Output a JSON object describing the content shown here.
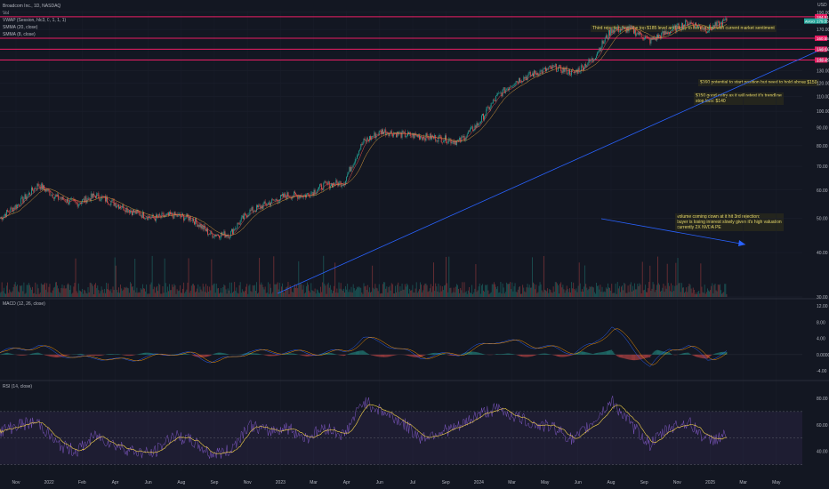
{
  "header": {
    "symbol_line": "Broadcom Inc., 1D, NASDAQ",
    "volume_label": "Vol",
    "vwap_label": "VWAP (Session, hlc3, 0, 1, 1, 1)",
    "sma_label": "SMMA (20, close)",
    "ema_label": "SMMA (8, close)",
    "currency": "USD"
  },
  "panes": {
    "macd_label": "MACD (12, 26, close)",
    "rsi_label": "RSI (14, close)"
  },
  "annotations": {
    "top_note": "Third rejection from the top $185 level and likely to trend lower with current market sentiment",
    "note_160": "$160 potential to start position but need to hold above $150",
    "note_150": "$150 good entry as it will retest it's trendline\nstop loss: $140",
    "note_volume": "volume coming down at it hit 3rd rejection;\nbuyer is losing interest slowly given it's high valuation\ncurrently 2X NVDA PE"
  },
  "colors": {
    "background": "#131722",
    "up": "#26a69a",
    "down": "#ef5350",
    "level_line": "#e91e63",
    "trendline": "#2962ff",
    "rsi": "#7e57c2",
    "rsi_ma": "#f7d44a"
  },
  "chart_data": [
    {
      "type": "line",
      "title": "Broadcom Inc., 1D, NASDAQ",
      "ylabel": "USD",
      "y_ticks": [
        "190.00",
        "170.00",
        "150.00",
        "140.00",
        "130.00",
        "120.00",
        "110.00",
        "100.00",
        "90.00",
        "80.00",
        "70.00",
        "60.00",
        "50.00",
        "40.00",
        "30.00"
      ],
      "x_ticks": [
        "Nov",
        "2022",
        "Feb",
        "Apr",
        "Jun",
        "Aug",
        "Sep",
        "Nov",
        "2023",
        "Mar",
        "Apr",
        "Jun",
        "Jul",
        "Sep",
        "2024",
        "Mar",
        "May",
        "Jun",
        "Aug",
        "Sep",
        "Nov",
        "2025",
        "Mar",
        "May"
      ],
      "ylim": [
        30,
        192
      ],
      "horizontal_levels": [
        {
          "value": 184.51,
          "label": "184.51"
        },
        {
          "value": 160.55,
          "label": "160.55"
        },
        {
          "value": 149.54,
          "label": "149.54"
        },
        {
          "value": 139.45,
          "label": "139.45"
        }
      ],
      "last_price": {
        "value": 179.55,
        "label": "179.55",
        "tag": "AVGO"
      },
      "series": [
        {
          "x": [
            "2021-10",
            "2021-11",
            "2021-12",
            "2022-01",
            "2022-02",
            "2022-03",
            "2022-04",
            "2022-05",
            "2022-06",
            "2022-07",
            "2022-08",
            "2022-09",
            "2022-10",
            "2022-11",
            "2022-12",
            "2023-01",
            "2023-02",
            "2023-03",
            "2023-04",
            "2023-05",
            "2023-06",
            "2023-07",
            "2023-08",
            "2023-09",
            "2023-10",
            "2023-11",
            "2023-12",
            "2024-01",
            "2024-02",
            "2024-03",
            "2024-04",
            "2024-05",
            "2024-06",
            "2024-07",
            "2024-08",
            "2024-09",
            "2024-10",
            "2024-11",
            "2024-12"
          ],
          "values": [
            50,
            55,
            62,
            57,
            55,
            58,
            55,
            52,
            50,
            51,
            50,
            45,
            45,
            52,
            55,
            58,
            58,
            62,
            63,
            82,
            88,
            86,
            85,
            84,
            82,
            92,
            110,
            122,
            128,
            133,
            128,
            140,
            170,
            170,
            158,
            168,
            178,
            170,
            179.55
          ]
        }
      ]
    },
    {
      "type": "line",
      "title": "MACD (12, 26, close)",
      "y_ticks": [
        "12.00",
        "8.00",
        "4.00",
        "0.0000",
        "-4.00"
      ],
      "ylim": [
        -5.5,
        12
      ],
      "series": [
        {
          "values": [
            0.5,
            1.5,
            2,
            0.5,
            -1,
            -0.5,
            -1.5,
            -1,
            -0.5,
            0.5,
            0,
            -1.5,
            -1,
            1,
            0.5,
            0.8,
            0.3,
            0.5,
            0.8,
            4,
            3,
            1,
            -0.5,
            -0.2,
            0.3,
            2,
            3.5,
            3,
            2,
            1.5,
            0.5,
            2.5,
            7,
            2,
            -3,
            1.5,
            2,
            -1,
            0.5
          ]
        }
      ]
    },
    {
      "type": "line",
      "title": "RSI (14, close)",
      "y_ticks": [
        "80.00",
        "60.00",
        "40.00"
      ],
      "ylim": [
        25,
        88
      ],
      "series": [
        {
          "values": [
            55,
            60,
            62,
            45,
            40,
            52,
            45,
            40,
            38,
            52,
            48,
            38,
            40,
            60,
            55,
            58,
            50,
            58,
            52,
            78,
            70,
            62,
            50,
            55,
            58,
            68,
            72,
            66,
            60,
            58,
            48,
            62,
            78,
            60,
            45,
            58,
            62,
            48,
            52
          ]
        }
      ]
    }
  ]
}
